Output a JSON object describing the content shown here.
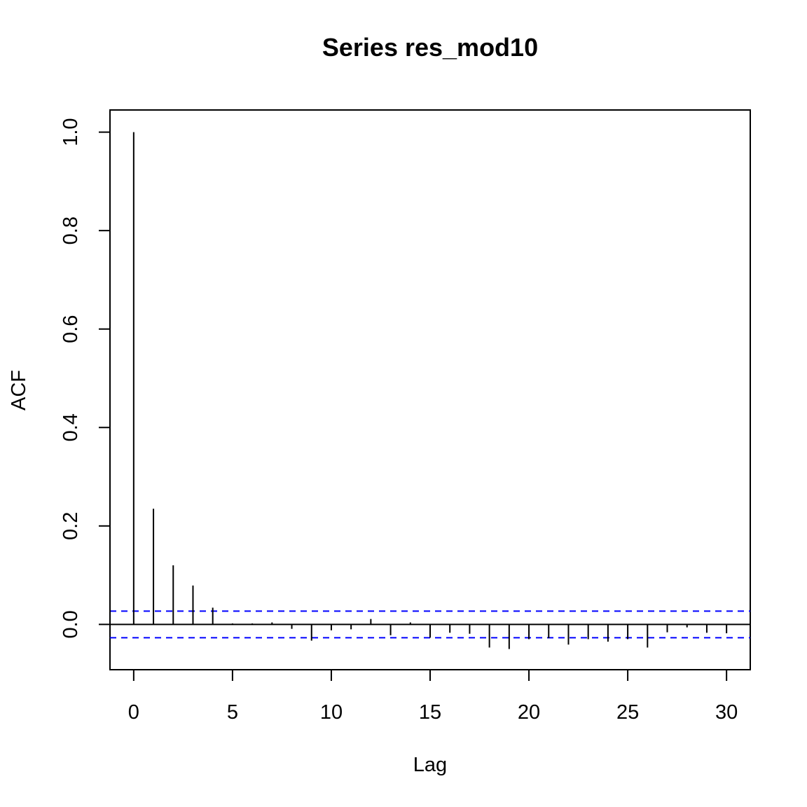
{
  "chart_data": {
    "type": "bar",
    "title": "Series  res_mod10",
    "xlabel": "Lag",
    "ylabel": "ACF",
    "xlim": [
      -1.2,
      31.2
    ],
    "ylim": [
      -0.092,
      1.045
    ],
    "x_ticks": [
      0,
      5,
      10,
      15,
      20,
      25,
      30
    ],
    "x_tick_labels": [
      "0",
      "5",
      "10",
      "15",
      "20",
      "25",
      "30"
    ],
    "y_ticks": [
      0.0,
      0.2,
      0.4,
      0.6,
      0.8,
      1.0
    ],
    "y_tick_labels": [
      "0.0",
      "0.2",
      "0.4",
      "0.6",
      "0.8",
      "1.0"
    ],
    "lags": [
      0,
      1,
      2,
      3,
      4,
      5,
      6,
      7,
      8,
      9,
      10,
      11,
      12,
      13,
      14,
      15,
      16,
      17,
      18,
      19,
      20,
      21,
      22,
      23,
      24,
      25,
      26,
      27,
      28,
      29,
      30
    ],
    "acf": [
      1.0,
      0.235,
      0.12,
      0.079,
      0.034,
      0.002,
      0.002,
      0.004,
      -0.009,
      -0.033,
      -0.012,
      -0.01,
      0.011,
      -0.022,
      0.004,
      -0.027,
      -0.017,
      -0.019,
      -0.047,
      -0.05,
      -0.03,
      -0.028,
      -0.041,
      -0.03,
      -0.035,
      -0.03,
      -0.047,
      -0.016,
      -0.006,
      -0.017,
      -0.018
    ],
    "confidence_bounds": [
      0.027,
      -0.027
    ],
    "confidence_line_color": "#0000ff",
    "bar_color": "#000000",
    "zero_line": true,
    "grid": false,
    "legend": "none"
  }
}
